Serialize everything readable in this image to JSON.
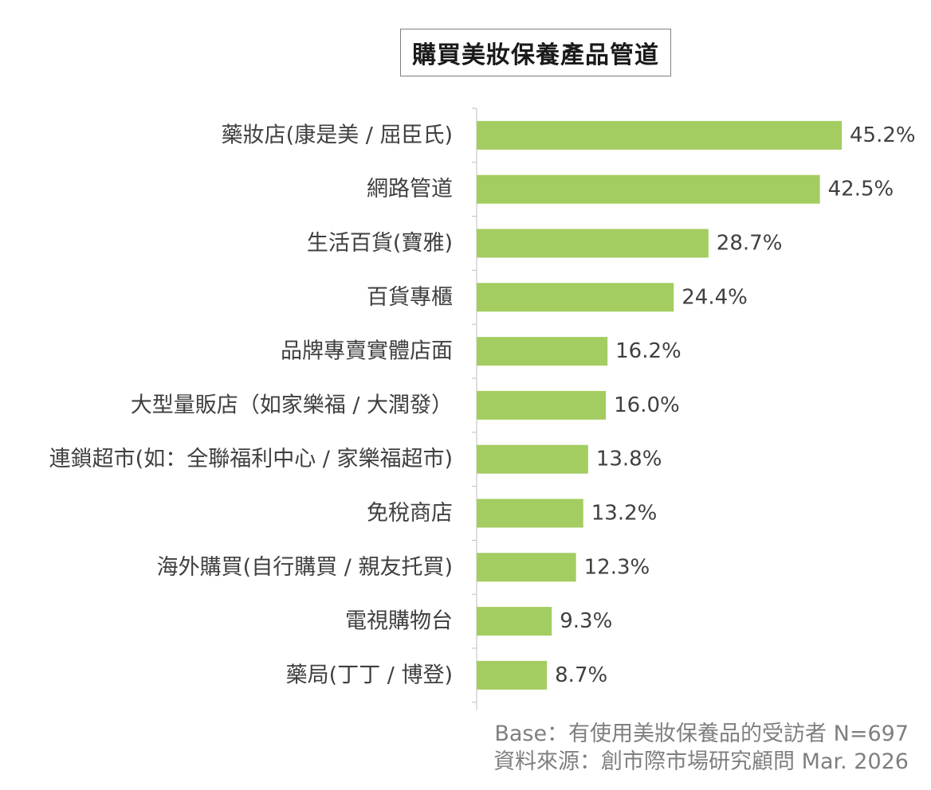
{
  "chart_data": {
    "type": "bar",
    "orientation": "horizontal",
    "title": "購買美妝保養產品管道",
    "categories": [
      "藥妝店(康是美 / 屈臣氏)",
      "網路管道",
      "生活百貨(寶雅)",
      "百貨專櫃",
      "品牌專賣實體店面",
      "大型量販店（如家樂福 / 大潤發）",
      "連鎖超市(如：全聯福利中心 / 家樂福超市)",
      "免稅商店",
      "海外購買(自行購買 / 親友托買)",
      "電視購物台",
      "藥局(丁丁 / 博登)"
    ],
    "values": [
      45.2,
      42.5,
      28.7,
      24.4,
      16.2,
      16.0,
      13.8,
      13.2,
      12.3,
      9.3,
      8.7
    ],
    "value_labels": [
      "45.2%",
      "42.5%",
      "28.7%",
      "24.4%",
      "16.2%",
      "16.0%",
      "13.8%",
      "13.2%",
      "12.3%",
      "9.3%",
      "8.7%"
    ],
    "xlim": [
      0,
      50
    ],
    "bar_color": "#a3cd60",
    "grid": false,
    "legend": "none"
  },
  "footer": {
    "base": "Base：有使用美妝保養品的受訪者 N=697",
    "source": "資料來源：創市際市場研究顧問 Mar. 2026"
  }
}
